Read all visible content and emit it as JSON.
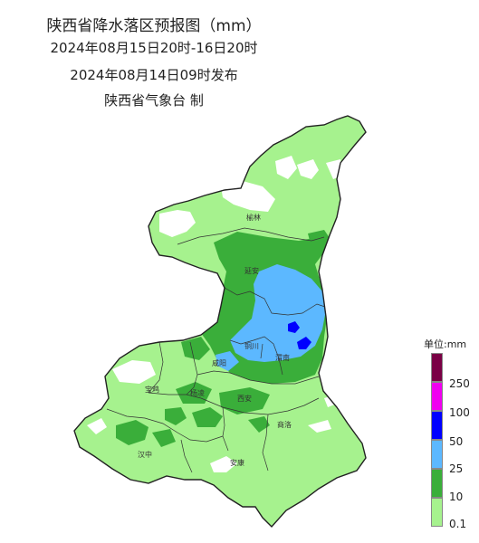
{
  "title": {
    "line1": "陕西省降水落区预报图（mm）",
    "line2": "2024年08月15日20时-16日20时",
    "line3": "2024年08月14日09时发布",
    "line4": "陕西省气象台  制"
  },
  "cities": [
    "榆林",
    "延安",
    "铜川",
    "渭南",
    "宝鸡",
    "咸阳",
    "杨凌",
    "西安",
    "商洛",
    "汉中",
    "安康"
  ],
  "legend": {
    "title": "单位:mm",
    "items": [
      {
        "label": "",
        "color": "#7a0045"
      },
      {
        "label": "250",
        "color": "#f000f0"
      },
      {
        "label": "100",
        "color": "#0000ff"
      },
      {
        "label": "50",
        "color": "#5cb8ff"
      },
      {
        "label": "25",
        "color": "#3aae3a"
      },
      {
        "label": "10",
        "color": "#a6f28e"
      },
      {
        "label": "0.1",
        "color": ""
      }
    ]
  },
  "colors": {
    "light_rain": "#a6f28e",
    "moderate": "#3aae3a",
    "heavy": "#5cb8ff",
    "rainstorm": "#0000ff",
    "boundary": "#222222"
  }
}
